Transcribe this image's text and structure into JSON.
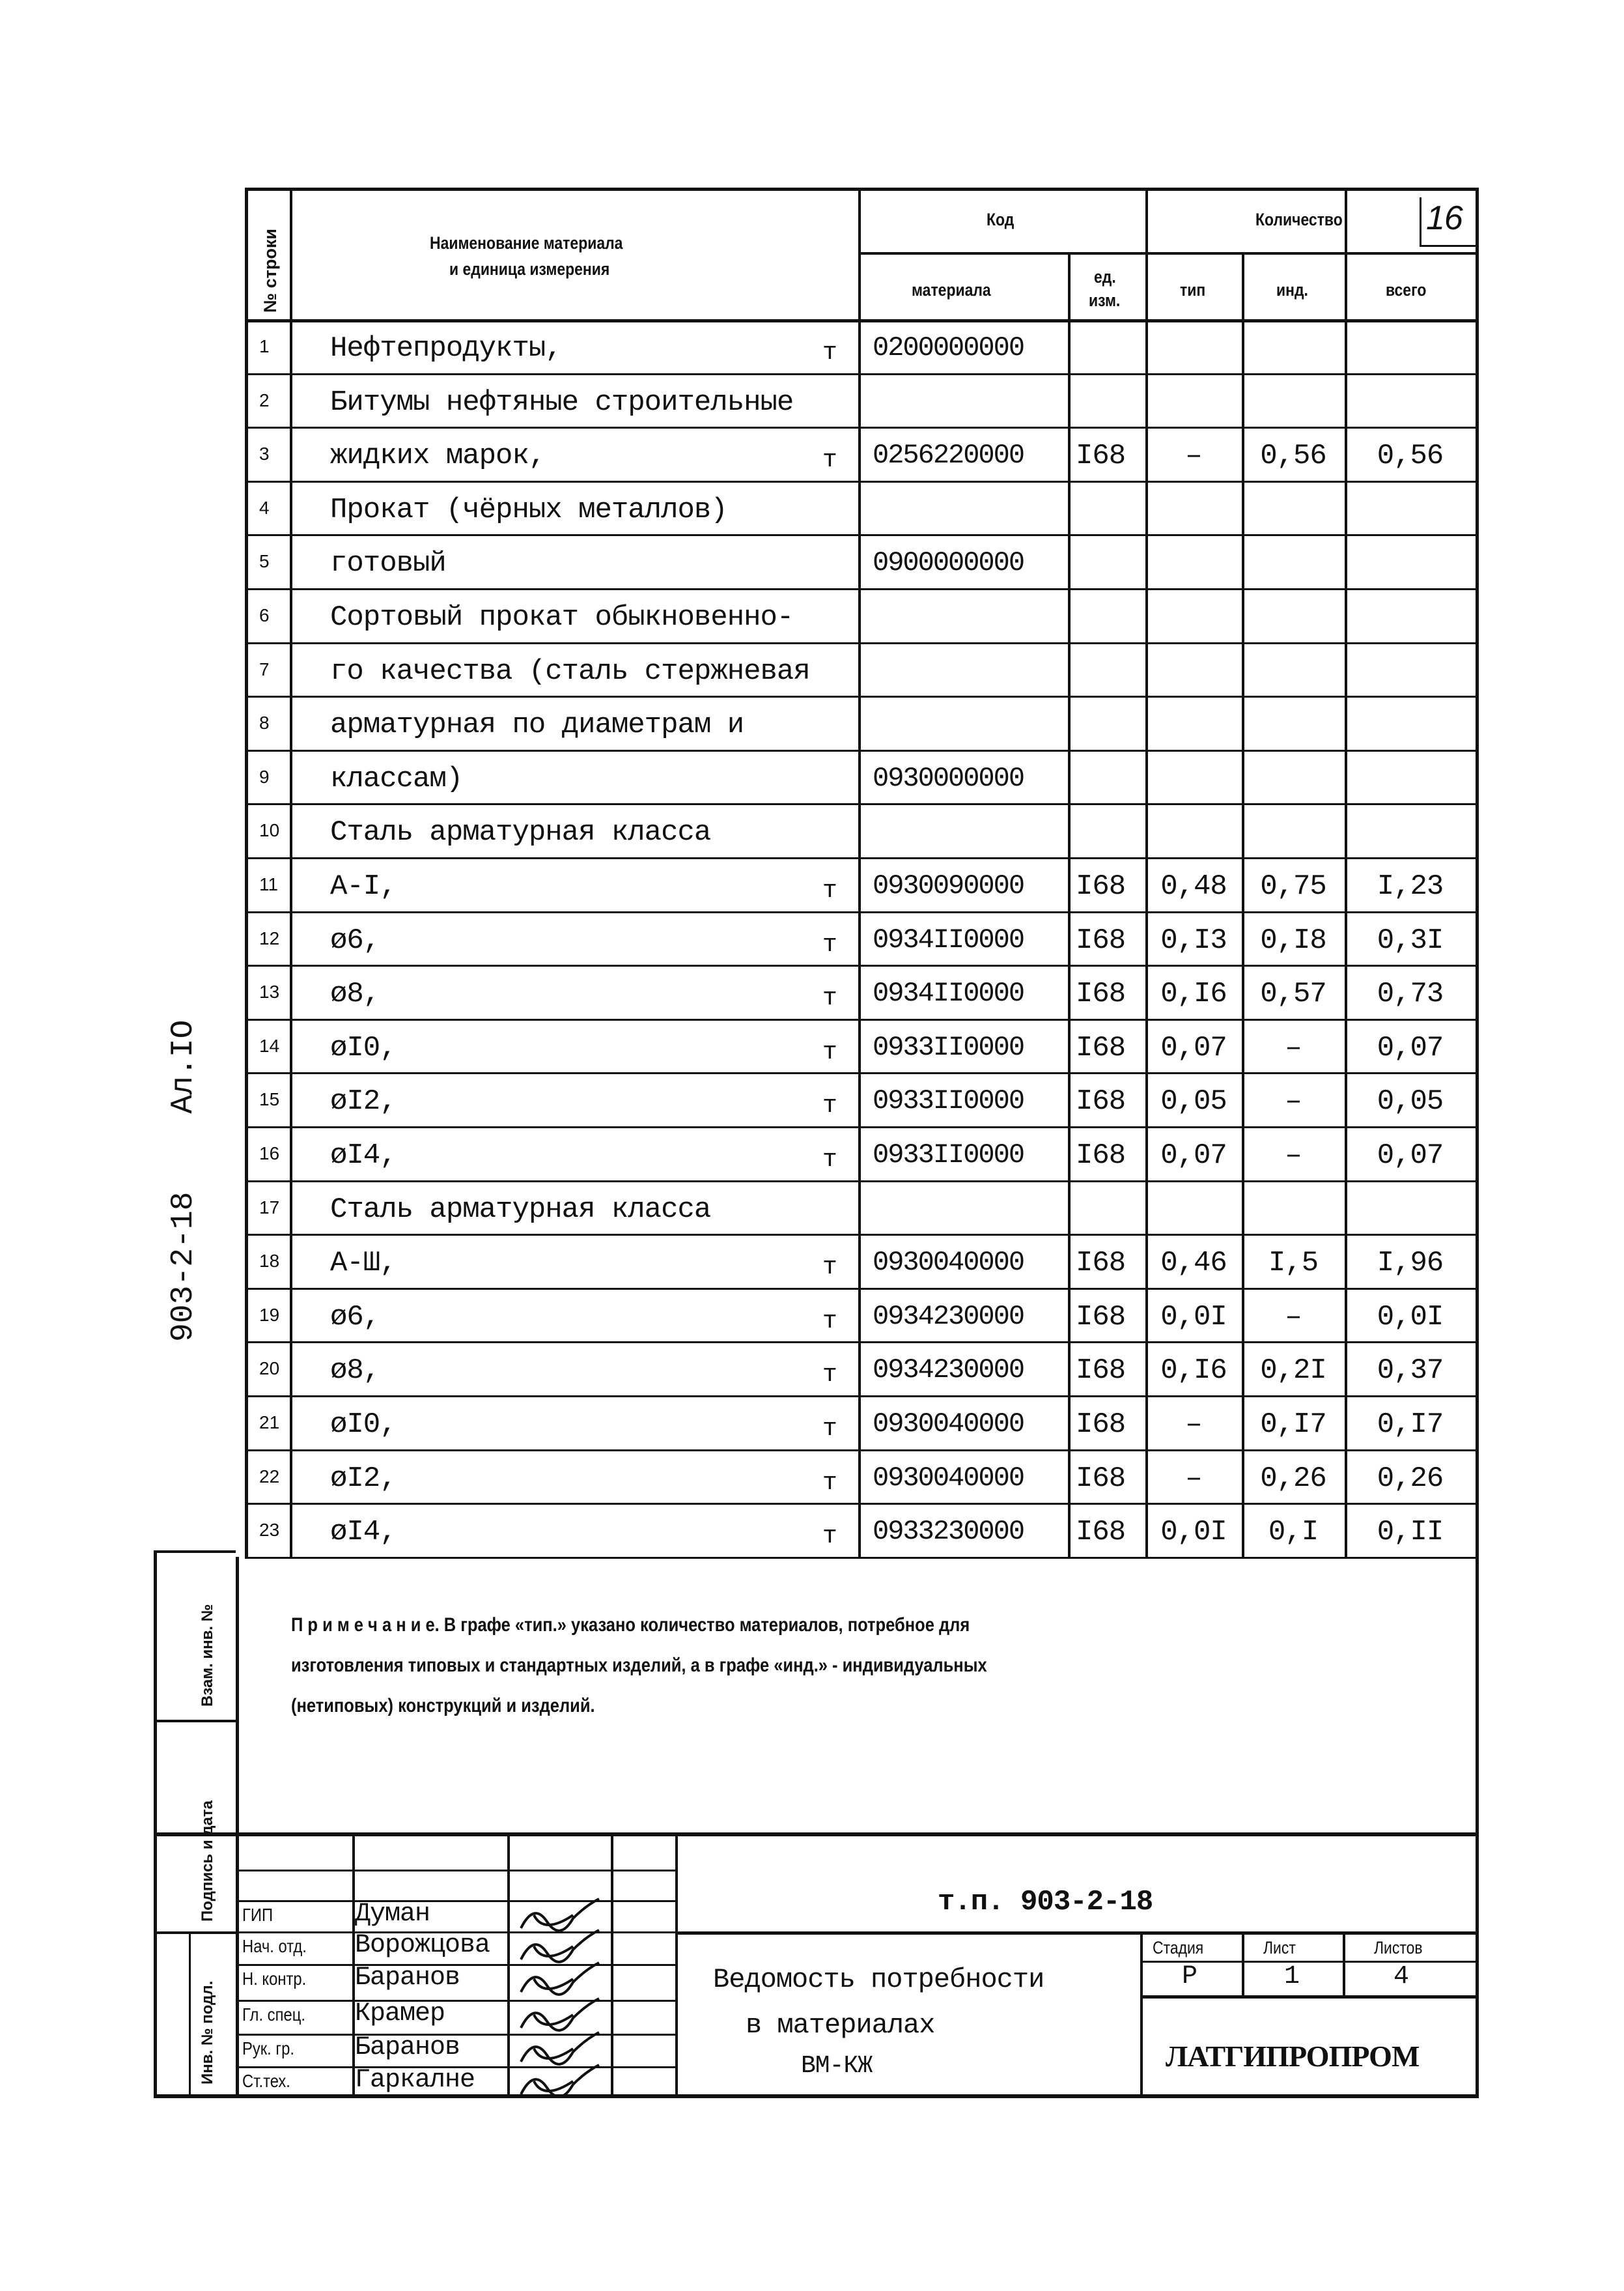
{
  "sheet_mark": "16",
  "side_label": "903-2-18",
  "side_album": "Ал.IO",
  "header": {
    "row_no": "№ строки",
    "name": [
      "Наименование материала",
      "и единица измерения"
    ],
    "code": "Код",
    "quantity": "Количество",
    "code_material": "материала",
    "code_unit": [
      "ед.",
      "изм."
    ],
    "qty_typ": "тип",
    "qty_ind": "инд.",
    "qty_total": "всего"
  },
  "rows": [
    {
      "n": "1",
      "name": "Нефтепродукты,",
      "unit": "т",
      "code": "0200000000",
      "u": "",
      "typ": "",
      "ind": "",
      "total": ""
    },
    {
      "n": "2",
      "name": "Битумы нефтяные строительные",
      "unit": "",
      "code": "",
      "u": "",
      "typ": "",
      "ind": "",
      "total": ""
    },
    {
      "n": "3",
      "name": "жидких марок,",
      "unit": "т",
      "code": "0256220000",
      "u": "I68",
      "typ": "–",
      "ind": "0,56",
      "total": "0,56"
    },
    {
      "n": "4",
      "name": "Прокат (чёрных металлов)",
      "unit": "",
      "code": "",
      "u": "",
      "typ": "",
      "ind": "",
      "total": ""
    },
    {
      "n": "5",
      "name": "готовый",
      "unit": "",
      "code": "0900000000",
      "u": "",
      "typ": "",
      "ind": "",
      "total": ""
    },
    {
      "n": "6",
      "name": "Сортовый прокат обыкновенно-",
      "unit": "",
      "code": "",
      "u": "",
      "typ": "",
      "ind": "",
      "total": ""
    },
    {
      "n": "7",
      "name": "го качества (сталь стержневая",
      "unit": "",
      "code": "",
      "u": "",
      "typ": "",
      "ind": "",
      "total": ""
    },
    {
      "n": "8",
      "name": "арматурная по диаметрам и",
      "unit": "",
      "code": "",
      "u": "",
      "typ": "",
      "ind": "",
      "total": ""
    },
    {
      "n": "9",
      "name": "классам)",
      "unit": "",
      "code": "0930000000",
      "u": "",
      "typ": "",
      "ind": "",
      "total": ""
    },
    {
      "n": "10",
      "name": "Сталь арматурная класса",
      "unit": "",
      "code": "",
      "u": "",
      "typ": "",
      "ind": "",
      "total": ""
    },
    {
      "n": "11",
      "name": "А-I,",
      "unit": "т",
      "code": "0930090000",
      "u": "I68",
      "typ": "0,48",
      "ind": "0,75",
      "total": "I,23"
    },
    {
      "n": "12",
      "name": "ø6,",
      "unit": "т",
      "code": "0934II0000",
      "u": "I68",
      "typ": "0,I3",
      "ind": "0,I8",
      "total": "0,3I"
    },
    {
      "n": "13",
      "name": "ø8,",
      "unit": "т",
      "code": "0934II0000",
      "u": "I68",
      "typ": "0,I6",
      "ind": "0,57",
      "total": "0,73"
    },
    {
      "n": "14",
      "name": "øI0,",
      "unit": "т",
      "code": "0933II0000",
      "u": "I68",
      "typ": "0,07",
      "ind": "–",
      "total": "0,07"
    },
    {
      "n": "15",
      "name": "øI2,",
      "unit": "т",
      "code": "0933II0000",
      "u": "I68",
      "typ": "0,05",
      "ind": "–",
      "total": "0,05"
    },
    {
      "n": "16",
      "name": "øI4,",
      "unit": "т",
      "code": "0933II0000",
      "u": "I68",
      "typ": "0,07",
      "ind": "–",
      "total": "0,07"
    },
    {
      "n": "17",
      "name": "Сталь арматурная класса",
      "unit": "",
      "code": "",
      "u": "",
      "typ": "",
      "ind": "",
      "total": ""
    },
    {
      "n": "18",
      "name": "А-Ш,",
      "unit": "т",
      "code": "0930040000",
      "u": "I68",
      "typ": "0,46",
      "ind": "I,5",
      "total": "I,96"
    },
    {
      "n": "19",
      "name": "ø6,",
      "unit": "т",
      "code": "0934230000",
      "u": "I68",
      "typ": "0,0I",
      "ind": "–",
      "total": "0,0I"
    },
    {
      "n": "20",
      "name": "ø8,",
      "unit": "т",
      "code": "0934230000",
      "u": "I68",
      "typ": "0,I6",
      "ind": "0,2I",
      "total": "0,37"
    },
    {
      "n": "21",
      "name": "øI0,",
      "unit": "т",
      "code": "0930040000",
      "u": "I68",
      "typ": "–",
      "ind": "0,I7",
      "total": "0,I7"
    },
    {
      "n": "22",
      "name": "øI2,",
      "unit": "т",
      "code": "0930040000",
      "u": "I68",
      "typ": "–",
      "ind": "0,26",
      "total": "0,26"
    },
    {
      "n": "23",
      "name": "øI4,",
      "unit": "т",
      "code": "0933230000",
      "u": "I68",
      "typ": "0,0I",
      "ind": "0,I",
      "total": "0,II"
    }
  ],
  "note": [
    "П р и м е ч а н и е. В графе «тип.» указано количество материалов, потребное для",
    "изготовления типовых и стандартных изделий, а в графе «инд.» - индивидуальных",
    "(нетиповых) конструкций и изделий."
  ],
  "strip": {
    "replace": "Взам. инв. №",
    "signature": "Подпись и дата",
    "inv": "Инв. № подл."
  },
  "title_block": {
    "doc_code": "т.п. 903-2-18",
    "people": [
      {
        "role": "ГИП",
        "name": "Думан"
      },
      {
        "role": "Нач. отд.",
        "name": "Ворожцова"
      },
      {
        "role": "Н. контр.",
        "name": "Баранов"
      },
      {
        "role": "Гл. спец.",
        "name": "Крамер"
      },
      {
        "role": "Рук. гр.",
        "name": "Баранов"
      },
      {
        "role": "Ст.тех.",
        "name": "Гаркалне"
      }
    ],
    "doc_title": [
      "Ведомость потребности",
      "в материалах",
      "ВМ-КЖ"
    ],
    "stage_label": "Стадия",
    "sheet_label": "Лист",
    "sheets_label": "Листов",
    "stage": "Р",
    "sheet": "1",
    "sheets": "4",
    "organization": "ЛАТГИПРОПРОМ"
  }
}
